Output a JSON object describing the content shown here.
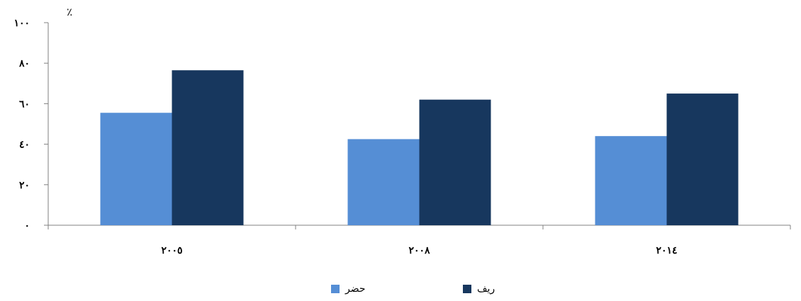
{
  "chart_data": {
    "type": "bar",
    "unit_label": "٪",
    "categories": [
      "٢٠٠٥",
      "٢٠٠٨",
      "٢٠١٤"
    ],
    "series": [
      {
        "name": "حضر",
        "color": "#558ed5",
        "values": [
          55.5,
          42.5,
          44
        ]
      },
      {
        "name": "ريف",
        "color": "#17375e",
        "values": [
          76.5,
          62,
          65
        ]
      }
    ],
    "ylim": [
      0,
      100
    ],
    "yticks": [
      0,
      20,
      40,
      60,
      80,
      100
    ],
    "ytick_labels": [
      "٠",
      "٢٠",
      "٤٠",
      "٦٠",
      "٨٠",
      "١٠٠"
    ],
    "grid": false,
    "legend_position": "bottom"
  }
}
